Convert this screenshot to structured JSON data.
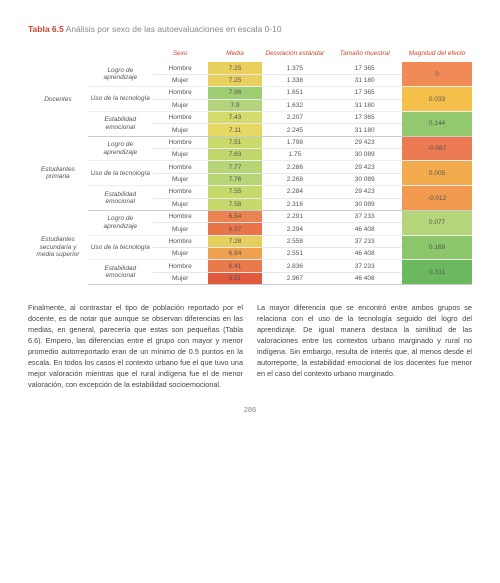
{
  "title": {
    "num": "Tabla 6.5",
    "text": "Análisis por sexo de las autoevaluaciones en escala 0-10"
  },
  "headers": {
    "sexo": "Sexo",
    "media": "Media",
    "desv": "Desviación estándar",
    "muestra": "Tamaño muestral",
    "efecto": "Magnitud del efecto"
  },
  "sexLabels": {
    "h": "Hombre",
    "m": "Mujer"
  },
  "groups": [
    {
      "label": "Docentes",
      "dims": [
        {
          "label": "Logro de aprendizaje",
          "h": {
            "media": "7.25",
            "mcolor": "#e8cf5e",
            "desv": "1.375",
            "n": "17 365"
          },
          "m": {
            "media": "7.25",
            "mcolor": "#e8cf5e",
            "desv": "1.338",
            "n": "31 180"
          },
          "effect": "0",
          "ecolor": "#f08a56"
        },
        {
          "label": "Uso de la tecnología",
          "h": {
            "media": "7.96",
            "mcolor": "#9fce72",
            "desv": "1.651",
            "n": "17 365"
          },
          "m": {
            "media": "7.9",
            "mcolor": "#b3d47d",
            "desv": "1.632",
            "n": "31 180"
          },
          "effect": "0.033",
          "ecolor": "#f4c04a"
        },
        {
          "label": "Estabilidad emocional",
          "h": {
            "media": "7.43",
            "mcolor": "#d3db6a",
            "desv": "2.207",
            "n": "17 365"
          },
          "m": {
            "media": "7.11",
            "mcolor": "#e6d863",
            "desv": "2.245",
            "n": "31 180"
          },
          "effect": "0.144",
          "ecolor": "#92c96e"
        }
      ]
    },
    {
      "label": "Estudiantes primaria",
      "dims": [
        {
          "label": "Logro de aprendizaje",
          "h": {
            "media": "7.51",
            "mcolor": "#c9d96a",
            "desv": "1.798",
            "n": "29 423"
          },
          "m": {
            "media": "7.63",
            "mcolor": "#c0d86b",
            "desv": "1.75",
            "n": "30 089"
          },
          "effect": "-0.067",
          "ecolor": "#ec7a53"
        },
        {
          "label": "Uso de la tecnología",
          "h": {
            "media": "7.77",
            "mcolor": "#b7d576",
            "desv": "2.286",
            "n": "29 423"
          },
          "m": {
            "media": "7.76",
            "mcolor": "#b7d576",
            "desv": "2.268",
            "n": "30 089"
          },
          "effect": "0.005",
          "ecolor": "#f2ab4d"
        },
        {
          "label": "Estabilidad emocional",
          "h": {
            "media": "7.55",
            "mcolor": "#c6d96b",
            "desv": "2.284",
            "n": "29 423"
          },
          "m": {
            "media": "7.58",
            "mcolor": "#c6d96b",
            "desv": "2.316",
            "n": "30 089"
          },
          "effect": "-0.012",
          "ecolor": "#f1994f"
        }
      ]
    },
    {
      "label": "Estudiantes secundaria y media superior",
      "dims": [
        {
          "label": "Logro de aprendizaje",
          "h": {
            "media": "6.54",
            "mcolor": "#ea8350",
            "desv": "2.291",
            "n": "37 233"
          },
          "m": {
            "media": "6.37",
            "mcolor": "#e97448",
            "desv": "2.294",
            "n": "46 408"
          },
          "effect": "0.077",
          "ecolor": "#b4d57a"
        },
        {
          "label": "Uso de la tecnología",
          "h": {
            "media": "7.28",
            "mcolor": "#e6d05d",
            "desv": "2.558",
            "n": "37 233"
          },
          "m": {
            "media": "6.84",
            "mcolor": "#efa14f",
            "desv": "2.551",
            "n": "46 408"
          },
          "effect": "0.169",
          "ecolor": "#8bc66a"
        },
        {
          "label": "Estabilidad emocional",
          "h": {
            "media": "6.41",
            "mcolor": "#e97a4b",
            "desv": "2.836",
            "n": "37 233"
          },
          "m": {
            "media": "5.51",
            "mcolor": "#e25a3e",
            "desv": "2.967",
            "n": "46 408"
          },
          "effect": "0.311",
          "ecolor": "#6bb85f"
        }
      ]
    }
  ],
  "paragraphs": {
    "left": "Finalmente, al contrastar el tipo de población reportado por el docente, es de notar que aunque se observan diferencias en las medias, en general, parecería que estas son pequeñas (Tabla 6.6). Empero, las diferencias entre el grupo con mayor y menor promedio autorreportado eran de un mínimo de 0.5 puntos en la escala. En todos los casos el contexto urbano fue el que tuvo una mejor valoración mientras que el rural indígena fue el de menor valoración, con excepción de la estabilidad socioemocional.",
    "right": "La mayor diferencia que se encontró entre ambos grupos se relaciona con el uso de la tecnología seguido del logro del aprendizaje. De igual manera destaca la similitud de las valoraciones entre los contextos urbano marginado y rural no indígena. Sin embargo, resulta de interés que, al menos desde el autorreporte, la estabilidad emocional de los docentes fue menor en el caso del contexto urbano marginado."
  },
  "pageNumber": "286"
}
